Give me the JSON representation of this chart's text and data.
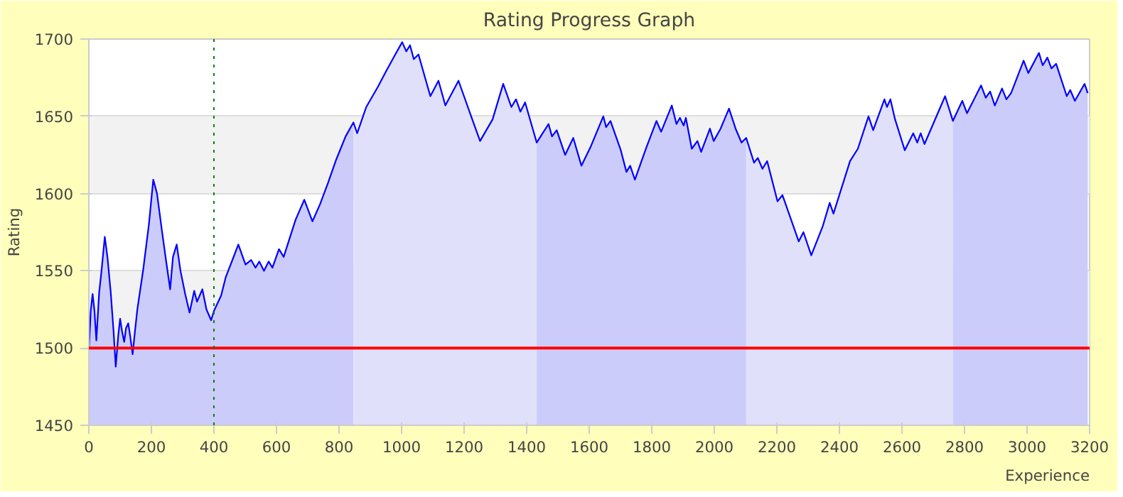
{
  "chart_data": {
    "type": "area",
    "title": "Rating Progress Graph",
    "xlabel": "Experience",
    "ylabel": "Rating",
    "xlim": [
      0,
      3200
    ],
    "ylim": [
      1450,
      1700
    ],
    "xticks": [
      0,
      200,
      400,
      600,
      800,
      1000,
      1200,
      1400,
      1600,
      1800,
      2000,
      2200,
      2400,
      2600,
      2800,
      3000,
      3200
    ],
    "yticks": [
      1450,
      1500,
      1550,
      1600,
      1650,
      1700
    ],
    "grid": "y",
    "ref_lines": [
      {
        "axis": "y",
        "value": 1500,
        "color": "#ff0000",
        "line_style": "solid"
      },
      {
        "axis": "x",
        "value": 400,
        "color": "#008000",
        "line_style": "dotted"
      }
    ],
    "series": [
      {
        "color": "#ccccfa",
        "x": [
          0,
          6,
          12,
          18,
          24,
          33,
          40,
          51,
          60,
          70,
          79,
          86,
          94,
          100,
          106,
          113,
          119,
          126,
          132,
          140,
          146,
          155,
          174,
          192,
          206,
          218,
          233,
          248,
          260,
          269,
          281,
          293,
          308,
          322,
          337,
          346,
          363,
          376,
          391,
          400,
          423,
          438,
          461,
          478,
          501,
          519,
          533,
          545,
          560,
          575,
          587,
          608,
          623,
          661,
          689,
          715,
          739,
          765,
          791,
          821,
          846
        ],
        "values": [
          1499,
          1524,
          1535,
          1524,
          1505,
          1536,
          1549,
          1572,
          1558,
          1536,
          1511,
          1488,
          1508,
          1519,
          1511,
          1504,
          1513,
          1516,
          1508,
          1496,
          1508,
          1525,
          1551,
          1580,
          1609,
          1600,
          1577,
          1555,
          1538,
          1559,
          1567,
          1550,
          1535,
          1523,
          1537,
          1530,
          1538,
          1525,
          1518,
          1524,
          1534,
          1546,
          1558,
          1567,
          1554,
          1557,
          1552,
          1556,
          1550,
          1556,
          1552,
          1564,
          1559,
          1583,
          1596,
          1582,
          1593,
          1607,
          1622,
          1637,
          1646
        ]
      },
      {
        "color": "#e0e0fa",
        "x": [
          846,
          858,
          887,
          924,
          950,
          977,
          1002,
          1015,
          1027,
          1039,
          1054,
          1092,
          1118,
          1140,
          1182,
          1226,
          1251,
          1291,
          1325,
          1351,
          1366,
          1380,
          1395,
          1432
        ],
        "values": [
          1646,
          1639,
          1656,
          1669,
          1679,
          1689,
          1698,
          1692,
          1696,
          1687,
          1690,
          1663,
          1673,
          1657,
          1673,
          1648,
          1634,
          1648,
          1671,
          1656,
          1661,
          1653,
          1659,
          1633
        ]
      },
      {
        "color": "#ccccfa",
        "x": [
          1432,
          1470,
          1481,
          1496,
          1523,
          1549,
          1575,
          1604,
          1645,
          1654,
          1668,
          1701,
          1719,
          1731,
          1746,
          1783,
          1815,
          1830,
          1864,
          1879,
          1890,
          1902,
          1909,
          1928,
          1946,
          1958,
          1986,
          1998,
          2020,
          2047,
          2068,
          2087,
          2102
        ],
        "values": [
          1633,
          1645,
          1637,
          1641,
          1625,
          1636,
          1618,
          1630,
          1650,
          1643,
          1647,
          1628,
          1614,
          1618,
          1609,
          1630,
          1647,
          1640,
          1657,
          1645,
          1649,
          1644,
          1649,
          1629,
          1634,
          1627,
          1642,
          1634,
          1642,
          1655,
          1642,
          1633,
          1636
        ]
      },
      {
        "color": "#e0e0fa",
        "x": [
          2102,
          2127,
          2139,
          2154,
          2169,
          2202,
          2218,
          2270,
          2285,
          2310,
          2347,
          2369,
          2381,
          2434,
          2459,
          2493,
          2508,
          2544,
          2552,
          2563,
          2578,
          2609,
          2636,
          2649,
          2660,
          2672,
          2738,
          2763
        ],
        "values": [
          1636,
          1620,
          1623,
          1616,
          1621,
          1595,
          1599,
          1569,
          1575,
          1560,
          1579,
          1594,
          1587,
          1621,
          1629,
          1650,
          1641,
          1661,
          1656,
          1661,
          1648,
          1628,
          1639,
          1633,
          1639,
          1632,
          1663,
          1647
        ]
      },
      {
        "color": "#ccccfa",
        "x": [
          2763,
          2793,
          2808,
          2853,
          2868,
          2882,
          2897,
          2920,
          2934,
          2949,
          2989,
          3004,
          3038,
          3050,
          3065,
          3078,
          3093,
          3127,
          3138,
          3153,
          3184,
          3194
        ],
        "values": [
          1647,
          1660,
          1652,
          1670,
          1662,
          1666,
          1657,
          1668,
          1661,
          1665,
          1686,
          1678,
          1691,
          1683,
          1688,
          1681,
          1684,
          1663,
          1667,
          1660,
          1671,
          1665
        ]
      },
      {
        "type": "line",
        "color": "#0000ff",
        "x": [
          0,
          6,
          12,
          18,
          24,
          33,
          40,
          51,
          60,
          70,
          79,
          86,
          94,
          100,
          106,
          113,
          119,
          126,
          132,
          140,
          146,
          155,
          174,
          192,
          206,
          218,
          233,
          248,
          260,
          269,
          281,
          293,
          308,
          322,
          337,
          346,
          363,
          376,
          391,
          400,
          423,
          438,
          461,
          478,
          501,
          519,
          533,
          545,
          560,
          575,
          587,
          608,
          623,
          661,
          689,
          715,
          739,
          765,
          791,
          821,
          846,
          858,
          887,
          924,
          950,
          977,
          1002,
          1015,
          1027,
          1039,
          1054,
          1092,
          1118,
          1140,
          1182,
          1226,
          1251,
          1291,
          1325,
          1351,
          1366,
          1380,
          1395,
          1432,
          1470,
          1481,
          1496,
          1523,
          1549,
          1575,
          1604,
          1645,
          1654,
          1668,
          1701,
          1719,
          1731,
          1746,
          1783,
          1815,
          1830,
          1864,
          1879,
          1890,
          1902,
          1909,
          1928,
          1946,
          1958,
          1986,
          1998,
          2020,
          2047,
          2068,
          2087,
          2102,
          2127,
          2139,
          2154,
          2169,
          2202,
          2218,
          2270,
          2285,
          2310,
          2347,
          2369,
          2381,
          2434,
          2459,
          2493,
          2508,
          2544,
          2552,
          2563,
          2578,
          2609,
          2636,
          2649,
          2660,
          2672,
          2738,
          2763,
          2793,
          2808,
          2853,
          2868,
          2882,
          2897,
          2920,
          2934,
          2949,
          2989,
          3004,
          3038,
          3050,
          3065,
          3078,
          3093,
          3127,
          3138,
          3153,
          3184,
          3194
        ],
        "values": [
          1499,
          1524,
          1535,
          1524,
          1505,
          1536,
          1549,
          1572,
          1558,
          1536,
          1511,
          1488,
          1508,
          1519,
          1511,
          1504,
          1513,
          1516,
          1508,
          1496,
          1508,
          1525,
          1551,
          1580,
          1609,
          1600,
          1577,
          1555,
          1538,
          1559,
          1567,
          1550,
          1535,
          1523,
          1537,
          1530,
          1538,
          1525,
          1518,
          1524,
          1534,
          1546,
          1558,
          1567,
          1554,
          1557,
          1552,
          1556,
          1550,
          1556,
          1552,
          1564,
          1559,
          1583,
          1596,
          1582,
          1593,
          1607,
          1622,
          1637,
          1646,
          1639,
          1656,
          1669,
          1679,
          1689,
          1698,
          1692,
          1696,
          1687,
          1690,
          1663,
          1673,
          1657,
          1673,
          1648,
          1634,
          1648,
          1671,
          1656,
          1661,
          1653,
          1659,
          1633,
          1645,
          1637,
          1641,
          1625,
          1636,
          1618,
          1630,
          1650,
          1643,
          1647,
          1628,
          1614,
          1618,
          1609,
          1630,
          1647,
          1640,
          1657,
          1645,
          1649,
          1644,
          1649,
          1629,
          1634,
          1627,
          1642,
          1634,
          1642,
          1655,
          1642,
          1633,
          1636,
          1620,
          1623,
          1616,
          1621,
          1595,
          1599,
          1569,
          1575,
          1560,
          1579,
          1594,
          1587,
          1621,
          1629,
          1650,
          1641,
          1661,
          1656,
          1661,
          1648,
          1628,
          1639,
          1633,
          1639,
          1632,
          1663,
          1647,
          1660,
          1652,
          1670,
          1662,
          1666,
          1657,
          1668,
          1661,
          1665,
          1686,
          1678,
          1691,
          1683,
          1688,
          1681,
          1684,
          1663,
          1667,
          1660,
          1671,
          1665
        ]
      }
    ]
  }
}
